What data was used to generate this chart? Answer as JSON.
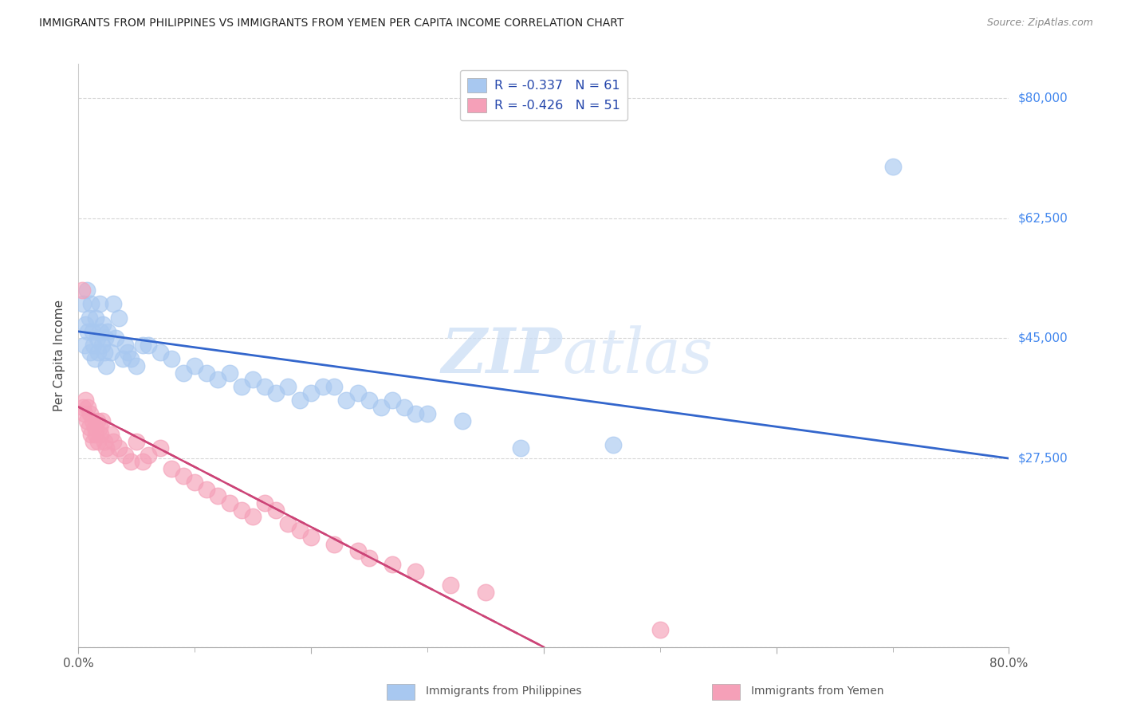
{
  "title": "IMMIGRANTS FROM PHILIPPINES VS IMMIGRANTS FROM YEMEN PER CAPITA INCOME CORRELATION CHART",
  "source": "Source: ZipAtlas.com",
  "ylabel": "Per Capita Income",
  "yticks": [
    0,
    27500,
    45000,
    62500,
    80000
  ],
  "ytick_labels": [
    "",
    "$27,500",
    "$45,000",
    "$62,500",
    "$80,000"
  ],
  "xlim": [
    0,
    80
  ],
  "ylim": [
    0,
    85000
  ],
  "watermark": "ZIPatlas",
  "legend_r1": "R = -0.337",
  "legend_n1": "N = 61",
  "legend_r2": "R = -0.426",
  "legend_n2": "N = 51",
  "blue_color": "#A8C8F0",
  "pink_color": "#F5A0B8",
  "blue_line_color": "#3366CC",
  "pink_line_color": "#CC4477",
  "background_color": "#FFFFFF",
  "grid_color": "#CCCCCC",
  "title_color": "#222222",
  "right_label_color": "#4488EE",
  "blue_line_x0": 0,
  "blue_line_y0": 46000,
  "blue_line_x1": 80,
  "blue_line_y1": 27500,
  "pink_line_x0": 0,
  "pink_line_y0": 35000,
  "pink_line_x1": 40,
  "pink_line_y1": 0,
  "philippines_x": [
    0.4,
    0.5,
    0.6,
    0.7,
    0.8,
    0.9,
    1.0,
    1.1,
    1.2,
    1.3,
    1.4,
    1.5,
    1.6,
    1.7,
    1.8,
    1.9,
    2.0,
    2.1,
    2.2,
    2.3,
    2.4,
    2.5,
    2.8,
    3.0,
    3.2,
    3.5,
    3.8,
    4.0,
    4.2,
    4.5,
    5.0,
    5.5,
    6.0,
    7.0,
    8.0,
    9.0,
    10.0,
    11.0,
    12.0,
    13.0,
    14.0,
    15.0,
    16.0,
    17.0,
    18.0,
    19.0,
    20.0,
    21.0,
    22.0,
    23.0,
    24.0,
    25.0,
    26.0,
    27.0,
    28.0,
    29.0,
    30.0,
    33.0,
    38.0,
    46.0,
    70.0
  ],
  "philippines_y": [
    50000,
    44000,
    47000,
    52000,
    46000,
    48000,
    43000,
    50000,
    46000,
    44000,
    42000,
    48000,
    45000,
    43000,
    50000,
    46000,
    44000,
    47000,
    43000,
    45000,
    41000,
    46000,
    43000,
    50000,
    45000,
    48000,
    42000,
    44000,
    43000,
    42000,
    41000,
    44000,
    44000,
    43000,
    42000,
    40000,
    41000,
    40000,
    39000,
    40000,
    38000,
    39000,
    38000,
    37000,
    38000,
    36000,
    37000,
    38000,
    38000,
    36000,
    37000,
    36000,
    35000,
    36000,
    35000,
    34000,
    34000,
    33000,
    29000,
    29500,
    70000
  ],
  "yemen_x": [
    0.3,
    0.4,
    0.5,
    0.6,
    0.7,
    0.8,
    0.9,
    1.0,
    1.1,
    1.2,
    1.3,
    1.4,
    1.5,
    1.6,
    1.7,
    1.8,
    1.9,
    2.0,
    2.2,
    2.4,
    2.6,
    2.8,
    3.0,
    3.5,
    4.0,
    4.5,
    5.0,
    5.5,
    6.0,
    7.0,
    8.0,
    9.0,
    10.0,
    11.0,
    12.0,
    13.0,
    14.0,
    15.0,
    16.0,
    17.0,
    18.0,
    19.0,
    20.0,
    22.0,
    24.0,
    25.0,
    27.0,
    29.0,
    32.0,
    35.0,
    50.0
  ],
  "yemen_y": [
    52000,
    35000,
    34000,
    36000,
    33000,
    35000,
    32000,
    34000,
    31000,
    33000,
    30000,
    32000,
    31000,
    33000,
    30000,
    32000,
    31000,
    33000,
    30000,
    29000,
    28000,
    31000,
    30000,
    29000,
    28000,
    27000,
    30000,
    27000,
    28000,
    29000,
    26000,
    25000,
    24000,
    23000,
    22000,
    21000,
    20000,
    19000,
    21000,
    20000,
    18000,
    17000,
    16000,
    15000,
    14000,
    13000,
    12000,
    11000,
    9000,
    8000,
    2500
  ]
}
